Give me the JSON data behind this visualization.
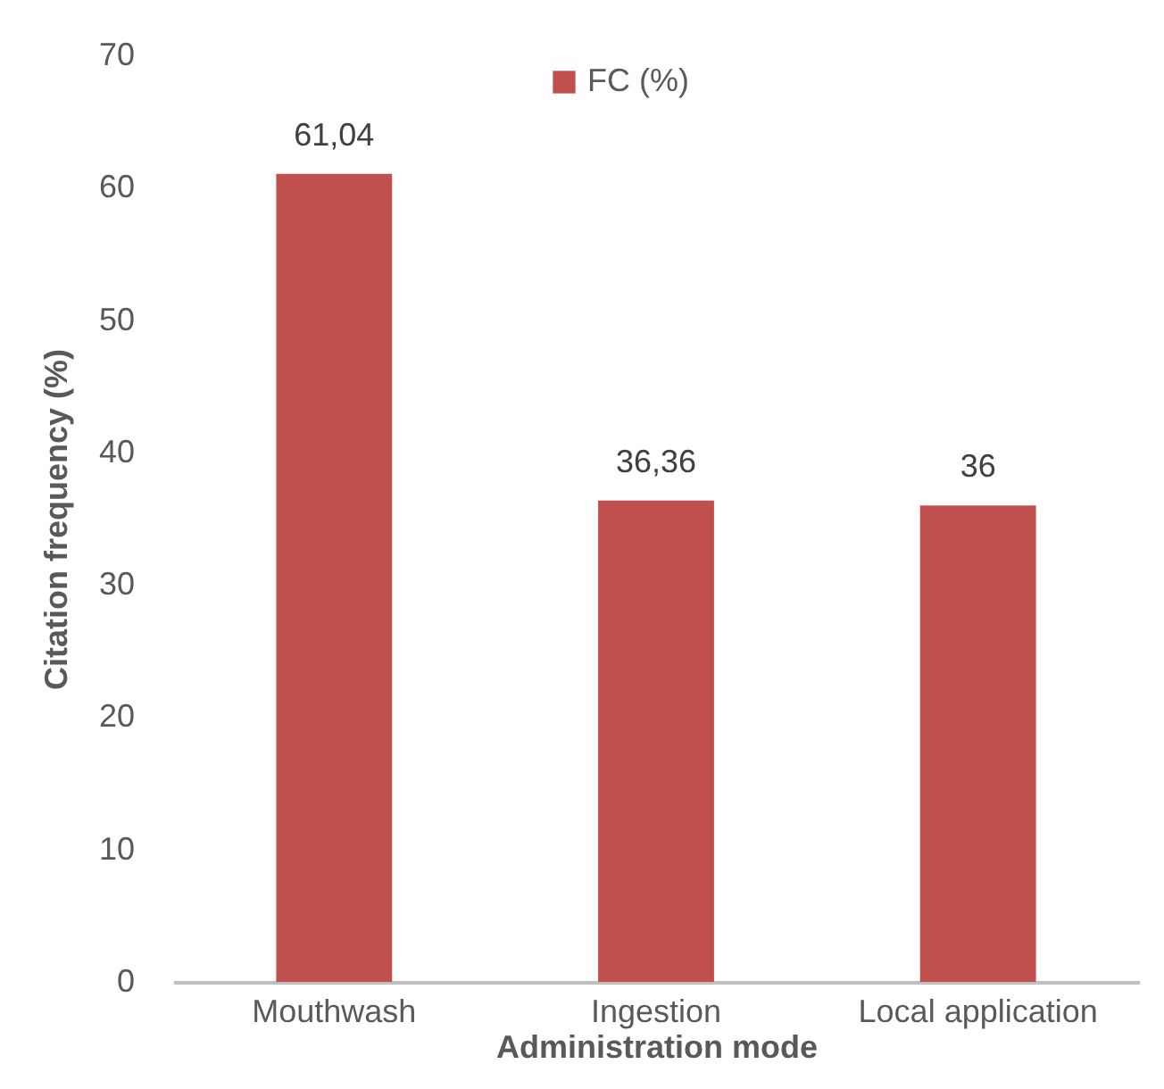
{
  "chart_data": {
    "type": "bar",
    "xlabel": "Administration mode",
    "ylabel": "Citation frequency (%)",
    "categories": [
      "Mouthwash",
      "Ingestion",
      "Local application"
    ],
    "series": [
      {
        "name": "FC (%)",
        "color": "#c0504d",
        "values": [
          61.04,
          36.36,
          36
        ],
        "value_labels": [
          "61,04",
          "36,36",
          "36"
        ]
      }
    ],
    "ylim": [
      0,
      70
    ],
    "yticks": [
      0,
      10,
      20,
      30,
      40,
      50,
      60,
      70
    ],
    "grid": false,
    "legend": "top"
  }
}
